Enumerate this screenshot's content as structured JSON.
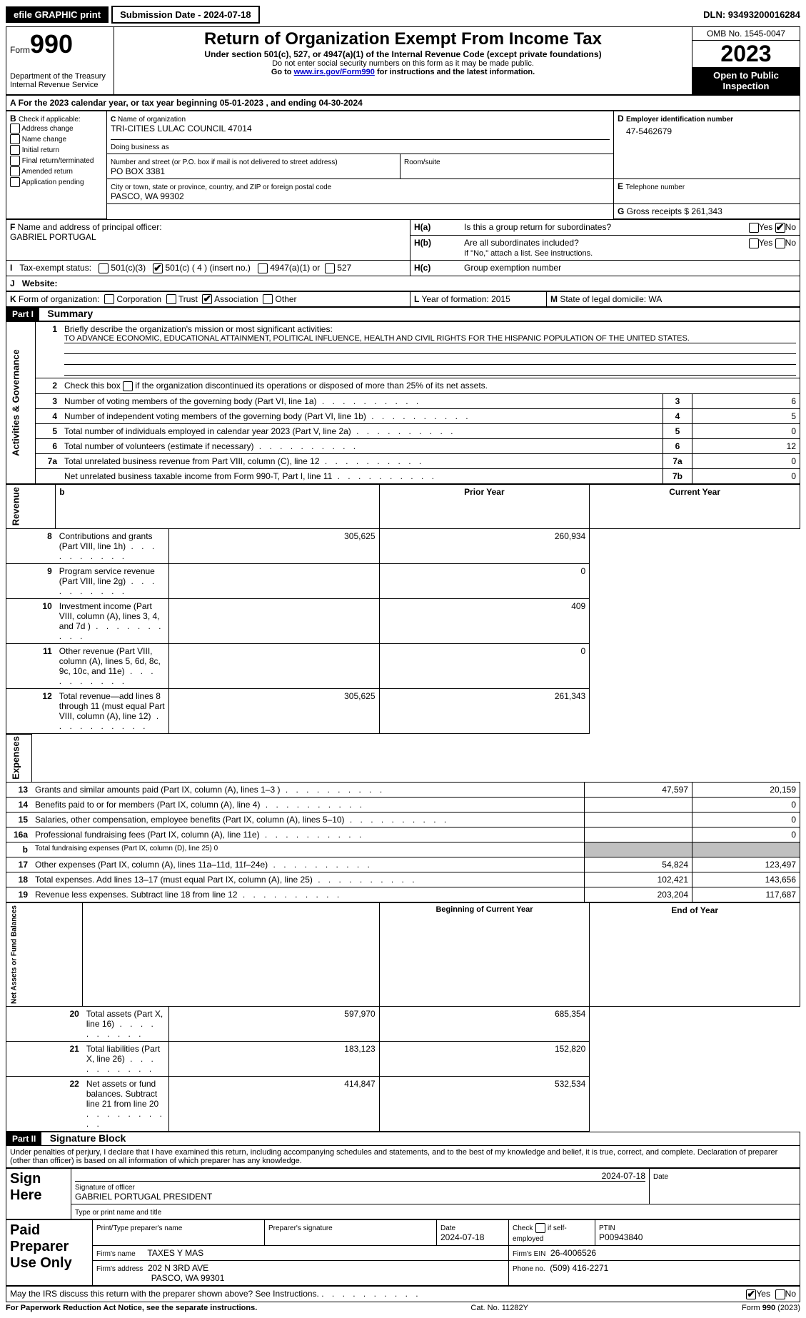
{
  "topbar": {
    "efile": "efile GRAPHIC print",
    "submission": "Submission Date - 2024-07-18",
    "dln": "DLN: 93493200016284"
  },
  "header": {
    "form_prefix": "Form",
    "form_num": "990",
    "dept": "Department of the Treasury Internal Revenue Service",
    "title": "Return of Organization Exempt From Income Tax",
    "sub1": "Under section 501(c), 527, or 4947(a)(1) of the Internal Revenue Code (except private foundations)",
    "sub2": "Do not enter social security numbers on this form as it may be made public.",
    "sub3_pre": "Go to ",
    "sub3_link": "www.irs.gov/Form990",
    "sub3_post": " for instructions and the latest information.",
    "omb": "OMB No. 1545-0047",
    "year": "2023",
    "open": "Open to Public Inspection"
  },
  "A": {
    "text_pre": "For the 2023 calendar year, or tax year beginning ",
    "begin": "05-01-2023",
    "mid": " , and ending ",
    "end": "04-30-2024"
  },
  "B": {
    "label": "Check if applicable:",
    "options": [
      "Address change",
      "Name change",
      "Initial return",
      "Final return/terminated",
      "Amended return",
      "Application pending"
    ]
  },
  "C": {
    "name_label": "Name of organization",
    "name": "TRI-CITIES LULAC COUNCIL 47014",
    "dba_label": "Doing business as",
    "dba": "",
    "street_label": "Number and street (or P.O. box if mail is not delivered to street address)",
    "street": "PO BOX 3381",
    "room_label": "Room/suite",
    "room": "",
    "city_label": "City or town, state or province, country, and ZIP or foreign postal code",
    "city": "PASCO, WA  99302"
  },
  "D": {
    "label": "Employer identification number",
    "value": "47-5462679"
  },
  "E": {
    "label": "Telephone number",
    "value": ""
  },
  "G": {
    "label": "Gross receipts $",
    "value": "261,343"
  },
  "F": {
    "label": "Name and address of principal officer:",
    "value": "GABRIEL PORTUGAL"
  },
  "H": {
    "a": "Is this a group return for subordinates?",
    "b": "Are all subordinates included?",
    "b_note": "If \"No,\" attach a list. See instructions.",
    "c": "Group exemption number"
  },
  "I": {
    "label": "Tax-exempt status:",
    "opt1": "501(c)(3)",
    "opt2": "501(c) ( 4 ) (insert no.)",
    "opt3": "4947(a)(1) or",
    "opt4": "527"
  },
  "J": {
    "label": "Website:",
    "value": ""
  },
  "K": {
    "label": "Form of organization:",
    "opts": [
      "Corporation",
      "Trust",
      "Association",
      "Other"
    ]
  },
  "L": {
    "label": "Year of formation:",
    "value": "2015"
  },
  "M": {
    "label": "State of legal domicile:",
    "value": "WA"
  },
  "part1": {
    "header": "Part I",
    "title": "Summary",
    "line1_label": "Briefly describe the organization's mission or most significant activities:",
    "mission": "TO ADVANCE ECONOMIC, EDUCATIONAL ATTAINMENT, POLITICAL INFLUENCE, HEALTH AND CIVIL RIGHTS FOR THE HISPANIC POPULATION OF THE UNITED STATES.",
    "line2": "Check this box",
    "line2_post": "if the organization discontinued its operations or disposed of more than 25% of its net assets.",
    "sections": {
      "governance": "Activities & Governance",
      "revenue": "Revenue",
      "expenses": "Expenses",
      "netassets": "Net Assets or Fund Balances"
    },
    "rows_gov": [
      {
        "n": "3",
        "text": "Number of voting members of the governing body (Part VI, line 1a)",
        "box": "3",
        "val": "6"
      },
      {
        "n": "4",
        "text": "Number of independent voting members of the governing body (Part VI, line 1b)",
        "box": "4",
        "val": "5"
      },
      {
        "n": "5",
        "text": "Total number of individuals employed in calendar year 2023 (Part V, line 2a)",
        "box": "5",
        "val": "0"
      },
      {
        "n": "6",
        "text": "Total number of volunteers (estimate if necessary)",
        "box": "6",
        "val": "12"
      },
      {
        "n": "7a",
        "text": "Total unrelated business revenue from Part VIII, column (C), line 12",
        "box": "7a",
        "val": "0"
      },
      {
        "n": "",
        "text": "Net unrelated business taxable income from Form 990-T, Part I, line 11",
        "box": "7b",
        "val": "0"
      }
    ],
    "col_headers": {
      "prior": "Prior Year",
      "current": "Current Year"
    },
    "rows_rev": [
      {
        "n": "8",
        "text": "Contributions and grants (Part VIII, line 1h)",
        "p": "305,625",
        "c": "260,934"
      },
      {
        "n": "9",
        "text": "Program service revenue (Part VIII, line 2g)",
        "p": "",
        "c": "0"
      },
      {
        "n": "10",
        "text": "Investment income (Part VIII, column (A), lines 3, 4, and 7d )",
        "p": "",
        "c": "409"
      },
      {
        "n": "11",
        "text": "Other revenue (Part VIII, column (A), lines 5, 6d, 8c, 9c, 10c, and 11e)",
        "p": "",
        "c": "0"
      },
      {
        "n": "12",
        "text": "Total revenue—add lines 8 through 11 (must equal Part VIII, column (A), line 12)",
        "p": "305,625",
        "c": "261,343"
      }
    ],
    "rows_exp": [
      {
        "n": "13",
        "text": "Grants and similar amounts paid (Part IX, column (A), lines 1–3 )",
        "p": "47,597",
        "c": "20,159"
      },
      {
        "n": "14",
        "text": "Benefits paid to or for members (Part IX, column (A), line 4)",
        "p": "",
        "c": "0"
      },
      {
        "n": "15",
        "text": "Salaries, other compensation, employee benefits (Part IX, column (A), lines 5–10)",
        "p": "",
        "c": "0"
      },
      {
        "n": "16a",
        "text": "Professional fundraising fees (Part IX, column (A), line 11e)",
        "p": "",
        "c": "0"
      },
      {
        "n": "b",
        "text": "Total fundraising expenses (Part IX, column (D), line 25) 0",
        "grey": true
      },
      {
        "n": "17",
        "text": "Other expenses (Part IX, column (A), lines 11a–11d, 11f–24e)",
        "p": "54,824",
        "c": "123,497"
      },
      {
        "n": "18",
        "text": "Total expenses. Add lines 13–17 (must equal Part IX, column (A), line 25)",
        "p": "102,421",
        "c": "143,656"
      },
      {
        "n": "19",
        "text": "Revenue less expenses. Subtract line 18 from line 12",
        "p": "203,204",
        "c": "117,687"
      }
    ],
    "col_headers2": {
      "begin": "Beginning of Current Year",
      "end": "End of Year"
    },
    "rows_net": [
      {
        "n": "20",
        "text": "Total assets (Part X, line 16)",
        "p": "597,970",
        "c": "685,354"
      },
      {
        "n": "21",
        "text": "Total liabilities (Part X, line 26)",
        "p": "183,123",
        "c": "152,820"
      },
      {
        "n": "22",
        "text": "Net assets or fund balances. Subtract line 21 from line 20",
        "p": "414,847",
        "c": "532,534"
      }
    ]
  },
  "part2": {
    "header": "Part II",
    "title": "Signature Block",
    "perjury": "Under penalties of perjury, I declare that I have examined this return, including accompanying schedules and statements, and to the best of my knowledge and belief, it is true, correct, and complete. Declaration of preparer (other than officer) is based on all information of which preparer has any knowledge.",
    "sign_here": "Sign Here",
    "sig_date": "2024-07-18",
    "sig_label": "Signature of officer",
    "sig_name": "GABRIEL PORTUGAL  PRESIDENT",
    "sig_type": "Type or print name and title",
    "date_label": "Date",
    "paid": "Paid Preparer Use Only",
    "prep_name_label": "Print/Type preparer's name",
    "prep_name": "",
    "prep_sig_label": "Preparer's signature",
    "prep_date": "2024-07-18",
    "check_self": "Check",
    "check_self2": "if self-employed",
    "ptin_label": "PTIN",
    "ptin": "P00943840",
    "firm_name_label": "Firm's name",
    "firm_name": "TAXES Y MAS",
    "firm_ein_label": "Firm's EIN",
    "firm_ein": "26-4006526",
    "firm_addr_label": "Firm's address",
    "firm_addr1": "202 N 3RD AVE",
    "firm_addr2": "PASCO, WA  99301",
    "phone_label": "Phone no.",
    "phone": "(509) 416-2271",
    "irs_discuss": "May the IRS discuss this return with the preparer shown above? See Instructions."
  },
  "footer": {
    "paperwork": "For Paperwork Reduction Act Notice, see the separate instructions.",
    "cat": "Cat. No. 11282Y",
    "form": "Form 990 (2023)"
  },
  "yesno": {
    "yes": "Yes",
    "no": "No"
  }
}
